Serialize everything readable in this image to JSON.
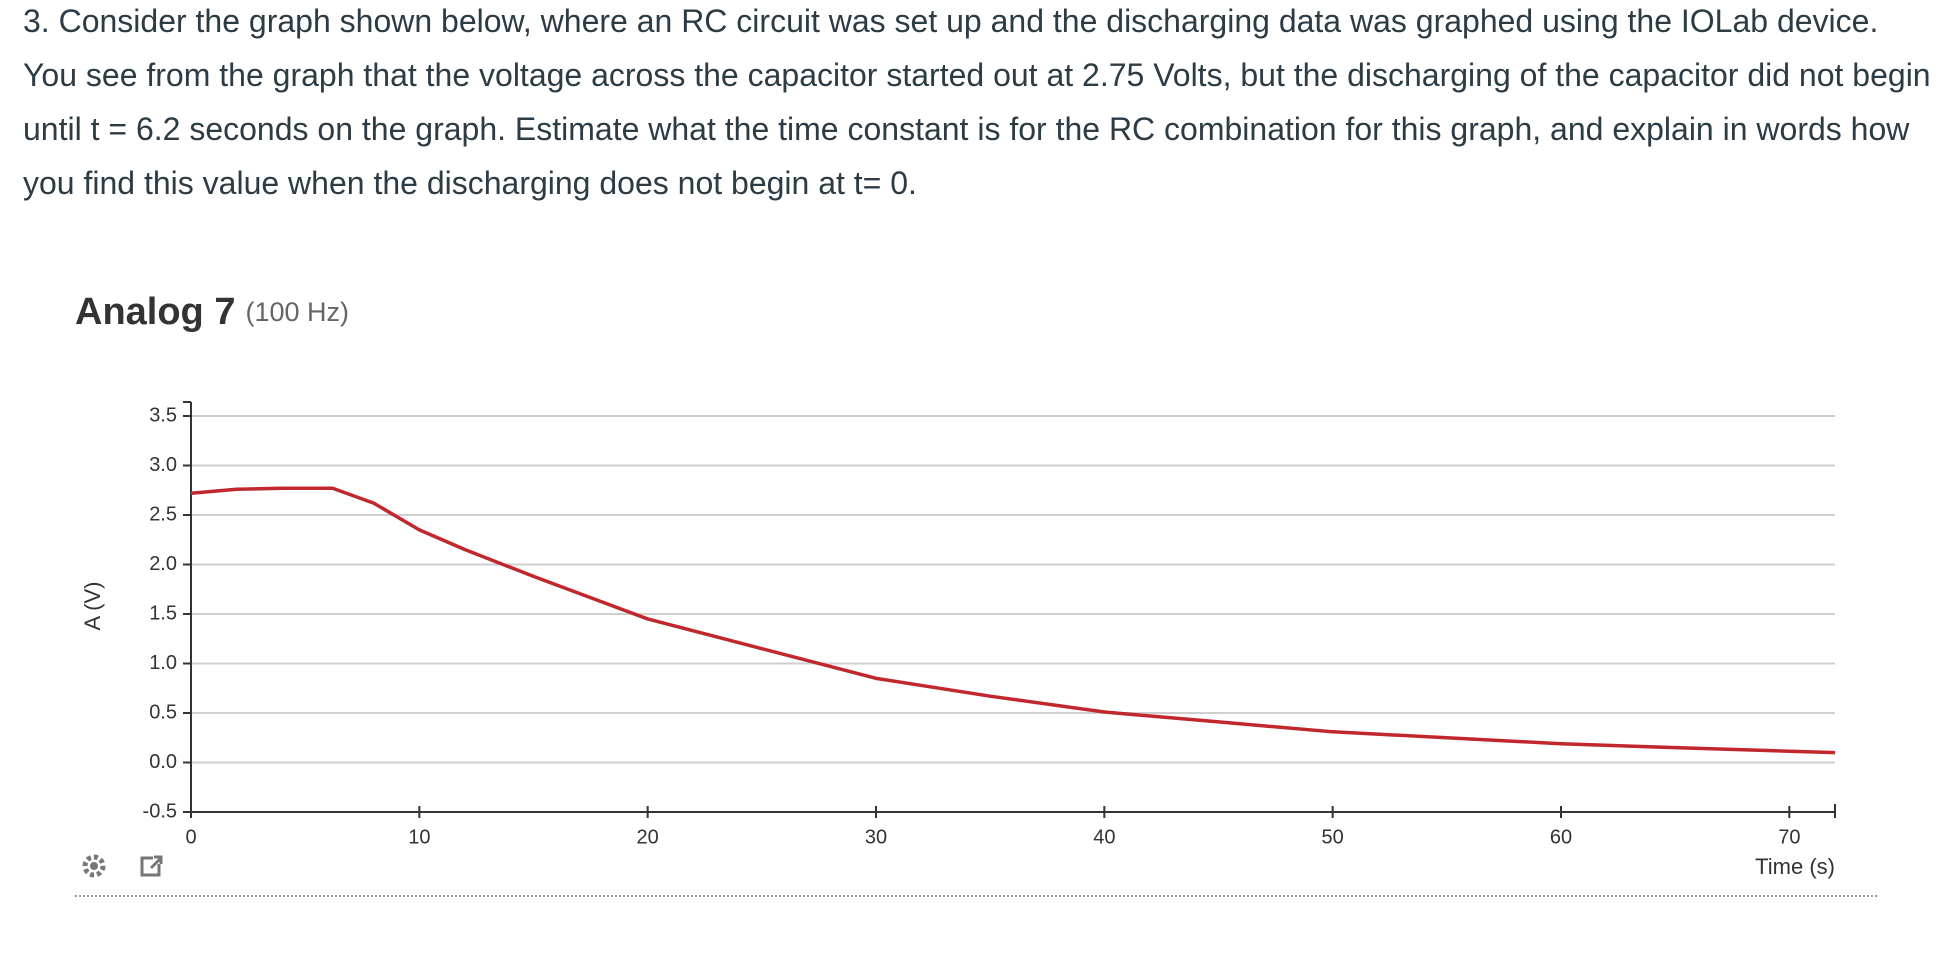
{
  "question": "3. Consider the graph shown below, where an RC circuit was set up and the discharging data was graphed using the IOLab device.  You see from the graph that the voltage across the capacitor started out at 2.75 Volts, but the discharging of the capacitor did not begin until  t = 6.2 seconds on the graph.  Estimate what the time constant is for the RC combination for this graph, and explain in words how you find this value when the discharging does not begin at t= 0.",
  "chart_data": {
    "type": "line",
    "title": "Analog 7",
    "subtitle": "(100 Hz)",
    "y_label": "A (V)",
    "x_label": "Time (s)",
    "x": [
      0,
      2,
      4,
      6.2,
      8,
      10,
      12,
      15,
      20,
      25,
      30,
      35,
      40,
      45,
      50,
      55,
      60,
      65,
      72
    ],
    "series": [
      {
        "color": "#c0282d",
        "values": [
          2.72,
          2.76,
          2.77,
          2.77,
          2.62,
          2.35,
          2.15,
          1.88,
          1.45,
          1.15,
          0.85,
          0.67,
          0.51,
          0.41,
          0.31,
          0.25,
          0.19,
          0.15,
          0.1
        ]
      }
    ],
    "xlim": [
      0,
      72
    ],
    "xticks": [
      0,
      10,
      20,
      30,
      40,
      50,
      60,
      70
    ],
    "ylim": [
      -0.5,
      3.5
    ],
    "yticks": [
      -0.5,
      {
        "value": 0,
        "label": "0.0"
      },
      0.5,
      {
        "value": 1,
        "label": "1.0"
      },
      1.5,
      {
        "value": 2,
        "label": "2.0"
      },
      2.5,
      {
        "value": 3,
        "label": "3.0"
      },
      3.5
    ],
    "grid": true
  }
}
